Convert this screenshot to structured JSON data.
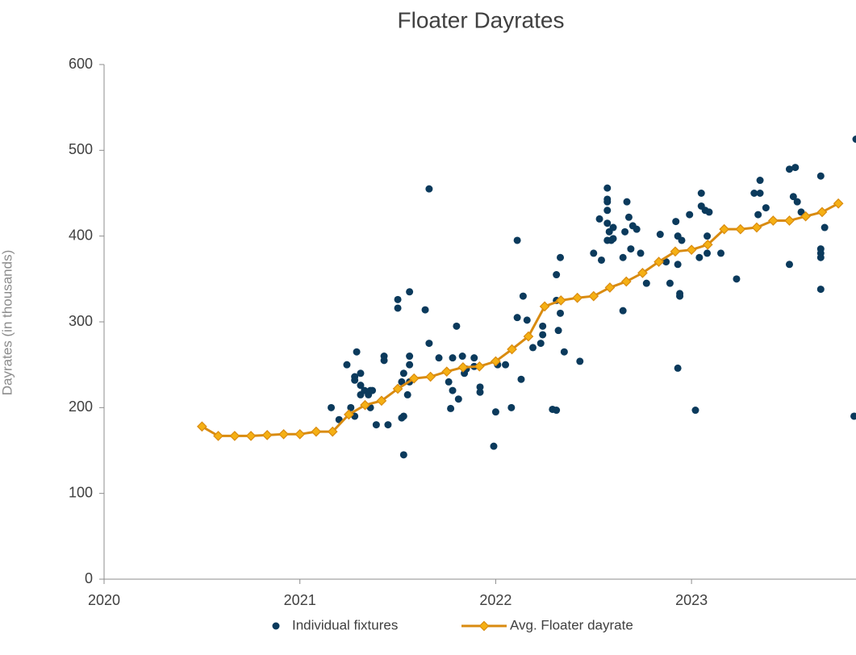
{
  "chart_data": {
    "type": "scatter",
    "title": "Floater Dayrates",
    "y_label": "Dayrates (in thousands)",
    "xlim": [
      2020,
      2023.84
    ],
    "xticks": [
      2020,
      2021,
      2022,
      2023
    ],
    "ylim": [
      0,
      600
    ],
    "yticks": [
      0,
      100,
      200,
      300,
      400,
      500,
      600
    ],
    "legend": "bottom",
    "series": [
      {
        "name": "Individual fixtures",
        "type": "scatter",
        "color": "#0b3a5c",
        "x": [
          2021.16,
          2021.2,
          2021.24,
          2021.26,
          2021.28,
          2021.28,
          2021.29,
          2021.28,
          2021.31,
          2021.31,
          2021.31,
          2021.33,
          2021.35,
          2021.36,
          2021.36,
          2021.37,
          2021.39,
          2021.43,
          2021.43,
          2021.45,
          2021.5,
          2021.5,
          2021.52,
          2021.53,
          2021.52,
          2021.53,
          2021.53,
          2021.56,
          2021.56,
          2021.56,
          2021.56,
          2021.55,
          2021.64,
          2021.66,
          2021.66,
          2021.71,
          2021.76,
          2021.77,
          2021.78,
          2021.78,
          2021.8,
          2021.81,
          2021.83,
          2021.84,
          2021.85,
          2021.89,
          2021.89,
          2021.92,
          2021.92,
          2021.99,
          2022.0,
          2022.01,
          2022.05,
          2022.08,
          2022.11,
          2022.11,
          2022.13,
          2022.14,
          2022.16,
          2022.19,
          2022.23,
          2022.24,
          2022.24,
          2022.29,
          2022.31,
          2022.31,
          2022.31,
          2022.33,
          2022.32,
          2022.33,
          2022.35,
          2022.43,
          2022.5,
          2022.54,
          2022.53,
          2022.57,
          2022.57,
          2022.57,
          2022.57,
          2022.57,
          2022.57,
          2022.58,
          2022.59,
          2022.6,
          2022.6,
          2022.65,
          2022.65,
          2022.66,
          2022.67,
          2022.68,
          2022.69,
          2022.7,
          2022.72,
          2022.74,
          2022.77,
          2022.84,
          2022.87,
          2022.89,
          2022.92,
          2022.93,
          2022.93,
          2022.93,
          2022.94,
          2022.94,
          2022.95,
          2022.99,
          2023.02,
          2023.04,
          2023.05,
          2023.05,
          2023.07,
          2023.08,
          2023.08,
          2023.09,
          2023.15,
          2023.23,
          2023.32,
          2023.34,
          2023.35,
          2023.35,
          2023.38,
          2023.5,
          2023.5,
          2023.52,
          2023.53,
          2023.54,
          2023.56,
          2023.66,
          2023.66,
          2023.66,
          2023.66,
          2023.66,
          2023.68,
          2023.83,
          2023.84
        ],
        "values": [
          200,
          186,
          250,
          200,
          232,
          236,
          265,
          190,
          240,
          226,
          215,
          220,
          215,
          200,
          220,
          220,
          180,
          260,
          255,
          180,
          326,
          316,
          188,
          190,
          230,
          240,
          145,
          260,
          250,
          230,
          335,
          215,
          314,
          275,
          455,
          258,
          230,
          199,
          258,
          220,
          295,
          210,
          260,
          240,
          245,
          258,
          248,
          224,
          218,
          155,
          195,
          250,
          250,
          200,
          305,
          395,
          233,
          330,
          302,
          270,
          275,
          285,
          295,
          198,
          197,
          325,
          355,
          375,
          290,
          310,
          265,
          254,
          380,
          372,
          420,
          456,
          443,
          440,
          430,
          415,
          395,
          405,
          395,
          410,
          397,
          313,
          375,
          405,
          440,
          422,
          385,
          412,
          408,
          380,
          345,
          402,
          370,
          345,
          417,
          367,
          400,
          246,
          330,
          333,
          395,
          425,
          197,
          375,
          435,
          450,
          430,
          380,
          400,
          428,
          380,
          350,
          450,
          425,
          450,
          465,
          433,
          478,
          367,
          446,
          480,
          440,
          428,
          470,
          385,
          380,
          375,
          338,
          410,
          190,
          513
        ]
      },
      {
        "name": "Avg. Floater dayrate",
        "type": "line",
        "color": "#d98b10",
        "marker_color": "#f5b014",
        "x": [
          2020.5,
          2020.583,
          2020.667,
          2020.75,
          2020.833,
          2020.917,
          2021,
          2021.083,
          2021.167,
          2021.25,
          2021.333,
          2021.417,
          2021.5,
          2021.583,
          2021.667,
          2021.75,
          2021.833,
          2021.917,
          2022,
          2022.083,
          2022.167,
          2022.25,
          2022.333,
          2022.417,
          2022.5,
          2022.583,
          2022.667,
          2022.75,
          2022.833,
          2022.917,
          2023,
          2023.083,
          2023.167,
          2023.25,
          2023.333,
          2023.417,
          2023.5,
          2023.583,
          2023.667,
          2023.75
        ],
        "values": [
          178,
          167,
          167,
          167,
          168,
          169,
          169,
          172,
          172,
          192,
          203,
          208,
          222,
          234,
          236,
          242,
          247,
          248,
          254,
          268,
          283,
          318,
          325,
          328,
          330,
          340,
          347,
          357,
          370,
          382,
          384,
          390,
          408,
          408,
          410,
          418,
          418,
          423,
          428,
          438
        ]
      }
    ]
  }
}
